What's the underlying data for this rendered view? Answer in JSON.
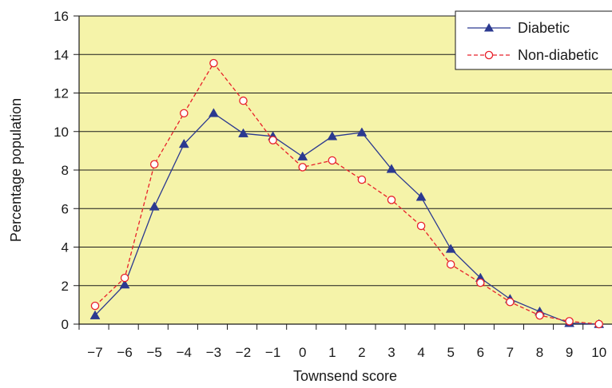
{
  "chart_data": {
    "type": "line",
    "title": "",
    "xlabel": "Townsend score",
    "ylabel": "Percentage population",
    "x": [
      -7,
      -6,
      -5,
      -4,
      -3,
      -2,
      -1,
      0,
      1,
      2,
      3,
      4,
      5,
      6,
      7,
      8,
      9,
      10
    ],
    "x_tick_labels": [
      "−7",
      "−6",
      "−5",
      "−4",
      "−3",
      "−2",
      "−1",
      "0",
      "1",
      "2",
      "3",
      "4",
      "5",
      "6",
      "7",
      "8",
      "9",
      "10"
    ],
    "ylim": [
      0,
      16
    ],
    "y_ticks": [
      0,
      2,
      4,
      6,
      8,
      10,
      12,
      14,
      16
    ],
    "grid": "horizontal",
    "legend_position": "top-right",
    "plot_background": "#f5f3a9",
    "series": [
      {
        "name": "Diabetic",
        "color": "#2b3990",
        "line_style": "solid",
        "marker": "filled-triangle",
        "values": [
          0.45,
          2.05,
          6.1,
          9.35,
          10.95,
          9.9,
          9.75,
          8.7,
          9.75,
          9.95,
          8.05,
          6.6,
          3.9,
          2.4,
          1.3,
          0.65,
          0.05,
          0.0
        ]
      },
      {
        "name": "Non-diabetic",
        "color": "#e8202a",
        "line_style": "dashed",
        "marker": "open-circle",
        "values": [
          0.95,
          2.4,
          8.3,
          10.95,
          13.55,
          11.6,
          9.55,
          8.15,
          8.5,
          7.5,
          6.45,
          5.1,
          3.1,
          2.15,
          1.15,
          0.45,
          0.15,
          0.0
        ]
      }
    ]
  }
}
